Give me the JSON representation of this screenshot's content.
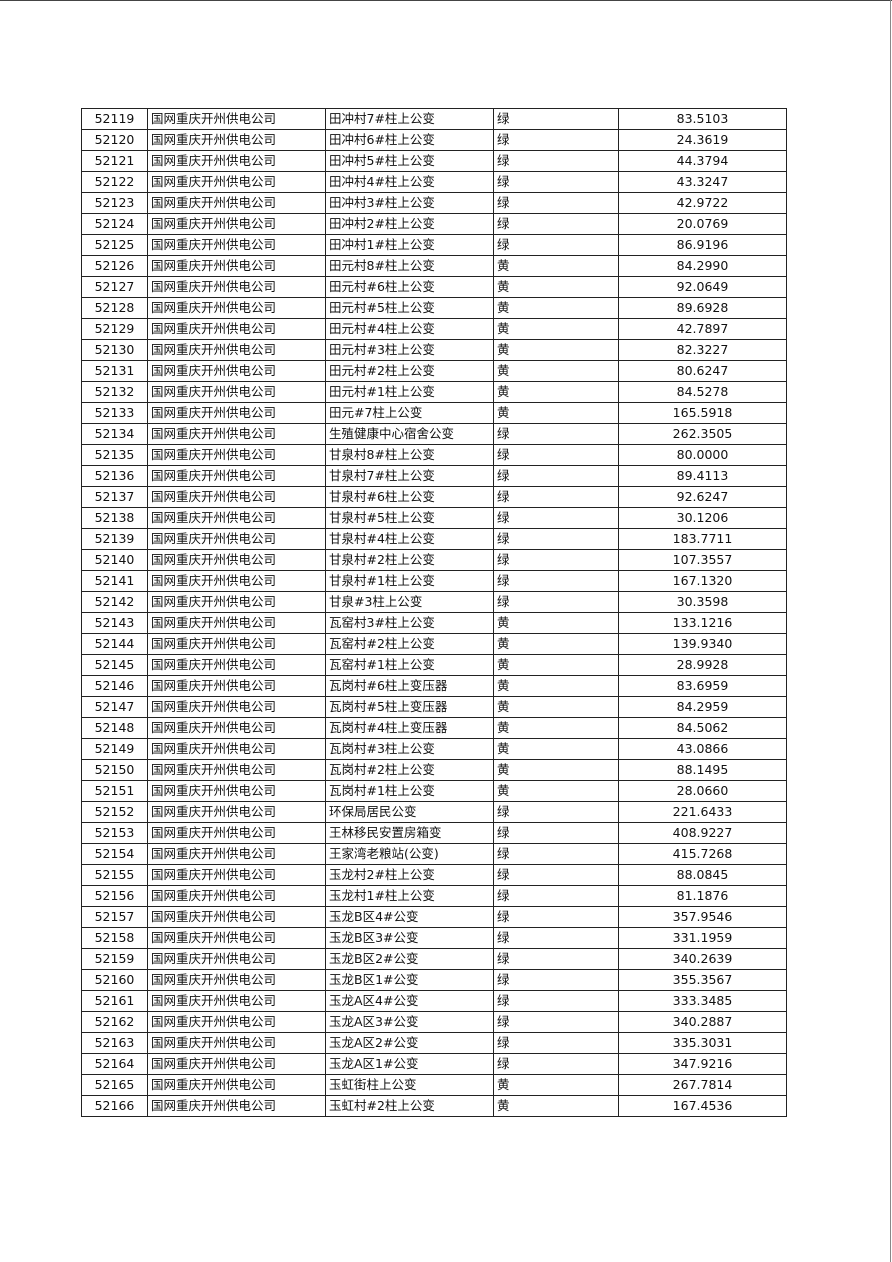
{
  "table": {
    "rows": [
      [
        "52119",
        "国网重庆开州供电公司",
        "田冲村7#柱上公变",
        "绿",
        "83.5103"
      ],
      [
        "52120",
        "国网重庆开州供电公司",
        "田冲村6#柱上公变",
        "绿",
        "24.3619"
      ],
      [
        "52121",
        "国网重庆开州供电公司",
        "田冲村5#柱上公变",
        "绿",
        "44.3794"
      ],
      [
        "52122",
        "国网重庆开州供电公司",
        "田冲村4#柱上公变",
        "绿",
        "43.3247"
      ],
      [
        "52123",
        "国网重庆开州供电公司",
        "田冲村3#柱上公变",
        "绿",
        "42.9722"
      ],
      [
        "52124",
        "国网重庆开州供电公司",
        "田冲村2#柱上公变",
        "绿",
        "20.0769"
      ],
      [
        "52125",
        "国网重庆开州供电公司",
        "田冲村1#柱上公变",
        "绿",
        "86.9196"
      ],
      [
        "52126",
        "国网重庆开州供电公司",
        "田元村8#柱上公变",
        "黄",
        "84.2990"
      ],
      [
        "52127",
        "国网重庆开州供电公司",
        "田元村#6柱上公变",
        "黄",
        "92.0649"
      ],
      [
        "52128",
        "国网重庆开州供电公司",
        "田元村#5柱上公变",
        "黄",
        "89.6928"
      ],
      [
        "52129",
        "国网重庆开州供电公司",
        "田元村#4柱上公变",
        "黄",
        "42.7897"
      ],
      [
        "52130",
        "国网重庆开州供电公司",
        "田元村#3柱上公变",
        "黄",
        "82.3227"
      ],
      [
        "52131",
        "国网重庆开州供电公司",
        "田元村#2柱上公变",
        "黄",
        "80.6247"
      ],
      [
        "52132",
        "国网重庆开州供电公司",
        "田元村#1柱上公变",
        "黄",
        "84.5278"
      ],
      [
        "52133",
        "国网重庆开州供电公司",
        "田元#7柱上公变",
        "黄",
        "165.5918"
      ],
      [
        "52134",
        "国网重庆开州供电公司",
        "生殖健康中心宿舍公变",
        "绿",
        "262.3505"
      ],
      [
        "52135",
        "国网重庆开州供电公司",
        "甘泉村8#柱上公变",
        "绿",
        "80.0000"
      ],
      [
        "52136",
        "国网重庆开州供电公司",
        "甘泉村7#柱上公变",
        "绿",
        "89.4113"
      ],
      [
        "52137",
        "国网重庆开州供电公司",
        "甘泉村#6柱上公变",
        "绿",
        "92.6247"
      ],
      [
        "52138",
        "国网重庆开州供电公司",
        "甘泉村#5柱上公变",
        "绿",
        "30.1206"
      ],
      [
        "52139",
        "国网重庆开州供电公司",
        "甘泉村#4柱上公变",
        "绿",
        "183.7711"
      ],
      [
        "52140",
        "国网重庆开州供电公司",
        "甘泉村#2柱上公变",
        "绿",
        "107.3557"
      ],
      [
        "52141",
        "国网重庆开州供电公司",
        "甘泉村#1柱上公变",
        "绿",
        "167.1320"
      ],
      [
        "52142",
        "国网重庆开州供电公司",
        "甘泉#3柱上公变",
        "绿",
        "30.3598"
      ],
      [
        "52143",
        "国网重庆开州供电公司",
        "瓦窑村3#柱上公变",
        "黄",
        "133.1216"
      ],
      [
        "52144",
        "国网重庆开州供电公司",
        "瓦窑村#2柱上公变",
        "黄",
        "139.9340"
      ],
      [
        "52145",
        "国网重庆开州供电公司",
        "瓦窑村#1柱上公变",
        "黄",
        "28.9928"
      ],
      [
        "52146",
        "国网重庆开州供电公司",
        "瓦岗村#6柱上变压器",
        "黄",
        "83.6959"
      ],
      [
        "52147",
        "国网重庆开州供电公司",
        "瓦岗村#5柱上变压器",
        "黄",
        "84.2959"
      ],
      [
        "52148",
        "国网重庆开州供电公司",
        "瓦岗村#4柱上变压器",
        "黄",
        "84.5062"
      ],
      [
        "52149",
        "国网重庆开州供电公司",
        "瓦岗村#3柱上公变",
        "黄",
        "43.0866"
      ],
      [
        "52150",
        "国网重庆开州供电公司",
        "瓦岗村#2柱上公变",
        "黄",
        "88.1495"
      ],
      [
        "52151",
        "国网重庆开州供电公司",
        "瓦岗村#1柱上公变",
        "黄",
        "28.0660"
      ],
      [
        "52152",
        "国网重庆开州供电公司",
        "环保局居民公变",
        "绿",
        "221.6433"
      ],
      [
        "52153",
        "国网重庆开州供电公司",
        "王林移民安置房箱变",
        "绿",
        "408.9227"
      ],
      [
        "52154",
        "国网重庆开州供电公司",
        "王家湾老粮站(公变)",
        "绿",
        "415.7268"
      ],
      [
        "52155",
        "国网重庆开州供电公司",
        "玉龙村2#柱上公变",
        "绿",
        "88.0845"
      ],
      [
        "52156",
        "国网重庆开州供电公司",
        "玉龙村1#柱上公变",
        "绿",
        "81.1876"
      ],
      [
        "52157",
        "国网重庆开州供电公司",
        "玉龙B区4#公变",
        "绿",
        "357.9546"
      ],
      [
        "52158",
        "国网重庆开州供电公司",
        "玉龙B区3#公变",
        "绿",
        "331.1959"
      ],
      [
        "52159",
        "国网重庆开州供电公司",
        "玉龙B区2#公变",
        "绿",
        "340.2639"
      ],
      [
        "52160",
        "国网重庆开州供电公司",
        "玉龙B区1#公变",
        "绿",
        "355.3567"
      ],
      [
        "52161",
        "国网重庆开州供电公司",
        "玉龙A区4#公变",
        "绿",
        "333.3485"
      ],
      [
        "52162",
        "国网重庆开州供电公司",
        "玉龙A区3#公变",
        "绿",
        "340.2887"
      ],
      [
        "52163",
        "国网重庆开州供电公司",
        "玉龙A区2#公变",
        "绿",
        "335.3031"
      ],
      [
        "52164",
        "国网重庆开州供电公司",
        "玉龙A区1#公变",
        "绿",
        "347.9216"
      ],
      [
        "52165",
        "国网重庆开州供电公司",
        "玉虹街柱上公变",
        "黄",
        "267.7814"
      ],
      [
        "52166",
        "国网重庆开州供电公司",
        "玉虹村#2柱上公变",
        "黄",
        "167.4536"
      ]
    ]
  }
}
